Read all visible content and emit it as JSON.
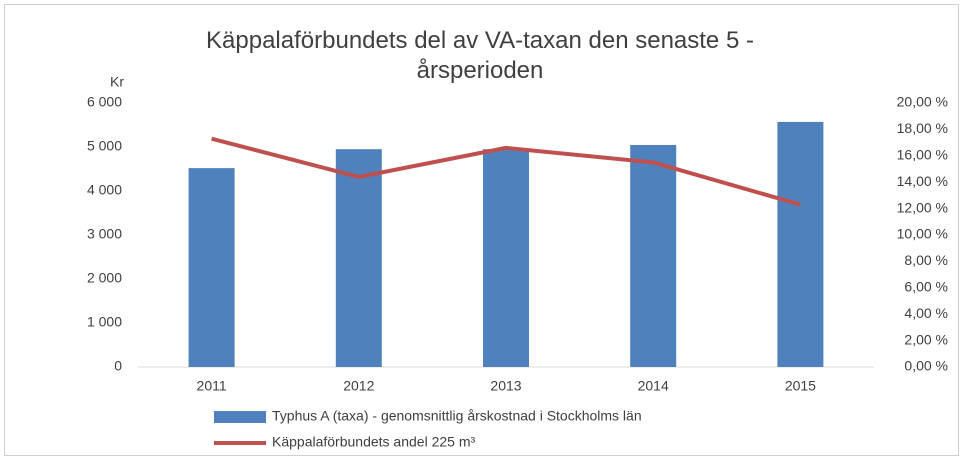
{
  "chart_data": {
    "type": "bar_line",
    "title": "Käppalaförbundets del av VA-taxan den senaste 5 - årsperioden",
    "y_label": "Kr",
    "categories": [
      "2011",
      "2012",
      "2013",
      "2014",
      "2015"
    ],
    "series": [
      {
        "name": "Typhus A (taxa) - genomsnittlig årskostnad i Stockholms län",
        "type": "bar",
        "color": "#4f81bd",
        "values": [
          4520,
          4950,
          4950,
          5045,
          5570
        ]
      },
      {
        "name": "Käppalaförbundets andel 225 m³",
        "type": "line",
        "axis": "y2",
        "color": "#c0504d",
        "values": [
          17.3,
          14.4,
          16.6,
          15.5,
          12.3
        ]
      }
    ],
    "ylim": [
      0,
      6000
    ],
    "yticks": [
      0,
      {
        "value": 1000,
        "label": "1 000"
      },
      {
        "value": 2000,
        "label": "2 000"
      },
      {
        "value": 3000,
        "label": "3 000"
      },
      {
        "value": 4000,
        "label": "4 000"
      },
      {
        "value": 5000,
        "label": "5 000"
      },
      {
        "value": 6000,
        "label": "6 000"
      }
    ],
    "y2lim": [
      0,
      20
    ],
    "y2ticks": [
      {
        "value": 0,
        "label": "0,00 %"
      },
      {
        "value": 2,
        "label": "2,00 %"
      },
      {
        "value": 4,
        "label": "4,00 %"
      },
      {
        "value": 6,
        "label": "6,00 %"
      },
      {
        "value": 8,
        "label": "8,00 %"
      },
      {
        "value": 10,
        "label": "10,00 %"
      },
      {
        "value": 12,
        "label": "12,00 %"
      },
      {
        "value": 14,
        "label": "14,00 %"
      },
      {
        "value": 16,
        "label": "16,00 %"
      },
      {
        "value": 18,
        "label": "18,00 %"
      },
      {
        "value": 20,
        "label": "20,00 %"
      }
    ],
    "legend": "bottom"
  }
}
